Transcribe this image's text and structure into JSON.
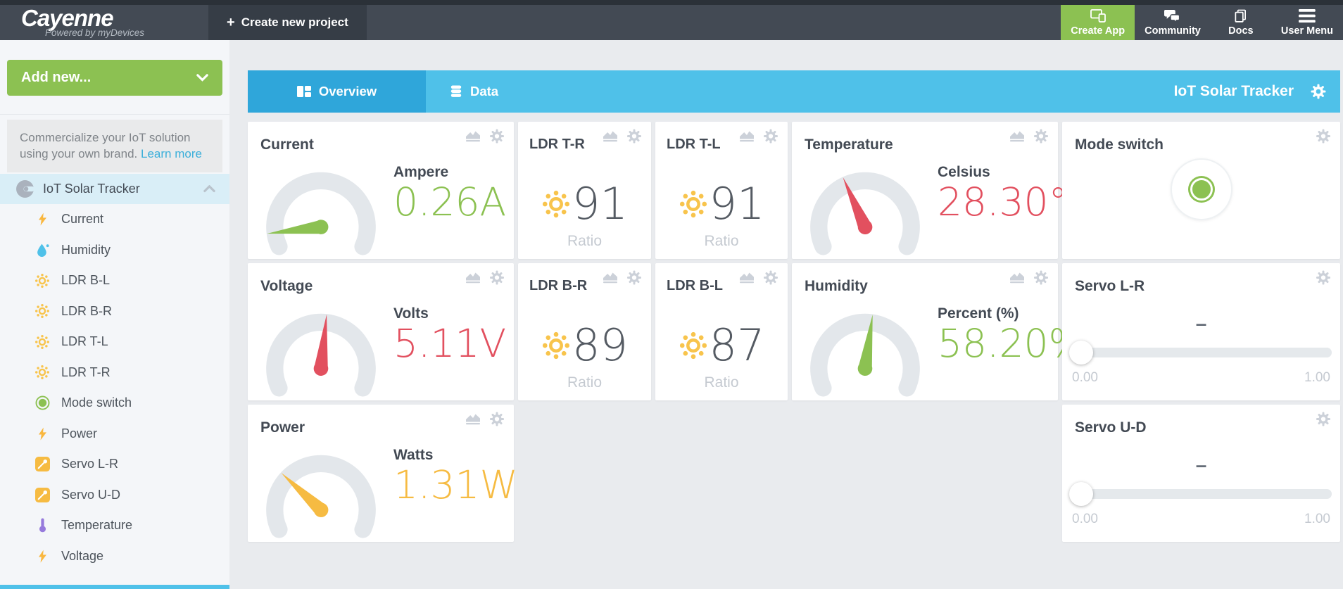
{
  "topbar": {
    "logo": "Cayenne",
    "tagline": "Powered by myDevices",
    "plus": "+",
    "create_project": "Create new project",
    "create_app": "Create App",
    "community": "Community",
    "docs": "Docs",
    "user_menu": "User Menu"
  },
  "sidebar": {
    "add_new": "Add new...",
    "promo_text": "Commercialize your IoT solution using your own brand. ",
    "promo_link": "Learn more",
    "project": "IoT Solar Tracker",
    "devices": [
      {
        "label": "Current"
      },
      {
        "label": "Humidity"
      },
      {
        "label": "LDR B-L"
      },
      {
        "label": "LDR B-R"
      },
      {
        "label": "LDR T-L"
      },
      {
        "label": "LDR T-R"
      },
      {
        "label": "Mode switch"
      },
      {
        "label": "Power"
      },
      {
        "label": "Servo L-R"
      },
      {
        "label": "Servo U-D"
      },
      {
        "label": "Temperature"
      },
      {
        "label": "Voltage"
      }
    ]
  },
  "tabs": {
    "overview": "Overview",
    "data": "Data",
    "board_title": "IoT Solar Tracker"
  },
  "colors": {
    "green": "#8cc152",
    "red": "#e2505f",
    "yellow": "#f6bb42",
    "blue": "#4fc1e9"
  },
  "widgets": {
    "current": {
      "title": "Current",
      "unit": "Ampere",
      "value": "0.26A",
      "color": "#8cc152",
      "needle_deg": -97
    },
    "ldr_tr": {
      "title": "LDR T-R",
      "unit": "Ratio",
      "value": "91"
    },
    "ldr_tl": {
      "title": "LDR T-L",
      "unit": "Ratio",
      "value": "91"
    },
    "temperature": {
      "title": "Temperature",
      "unit": "Celsius",
      "value": "28.30°",
      "color": "#e2505f",
      "needle_deg": -24
    },
    "mode_switch": {
      "title": "Mode switch",
      "state": "on"
    },
    "voltage": {
      "title": "Voltage",
      "unit": "Volts",
      "value": "5.11V",
      "color": "#e2505f",
      "needle_deg": 6
    },
    "ldr_br": {
      "title": "LDR B-R",
      "unit": "Ratio",
      "value": "89"
    },
    "ldr_bl": {
      "title": "LDR B-L",
      "unit": "Ratio",
      "value": "87"
    },
    "humidity": {
      "title": "Humidity",
      "unit": "Percent (%)",
      "value": "58.20%",
      "color": "#8cc152",
      "needle_deg": 8
    },
    "servo_lr": {
      "title": "Servo L-R",
      "value": "–",
      "min": "0.00",
      "max": "1.00"
    },
    "power": {
      "title": "Power",
      "unit": "Watts",
      "value": "1.31W",
      "color": "#f6bb42",
      "needle_deg": -47
    },
    "servo_ud": {
      "title": "Servo U-D",
      "value": "–",
      "min": "0.00",
      "max": "1.00"
    }
  }
}
